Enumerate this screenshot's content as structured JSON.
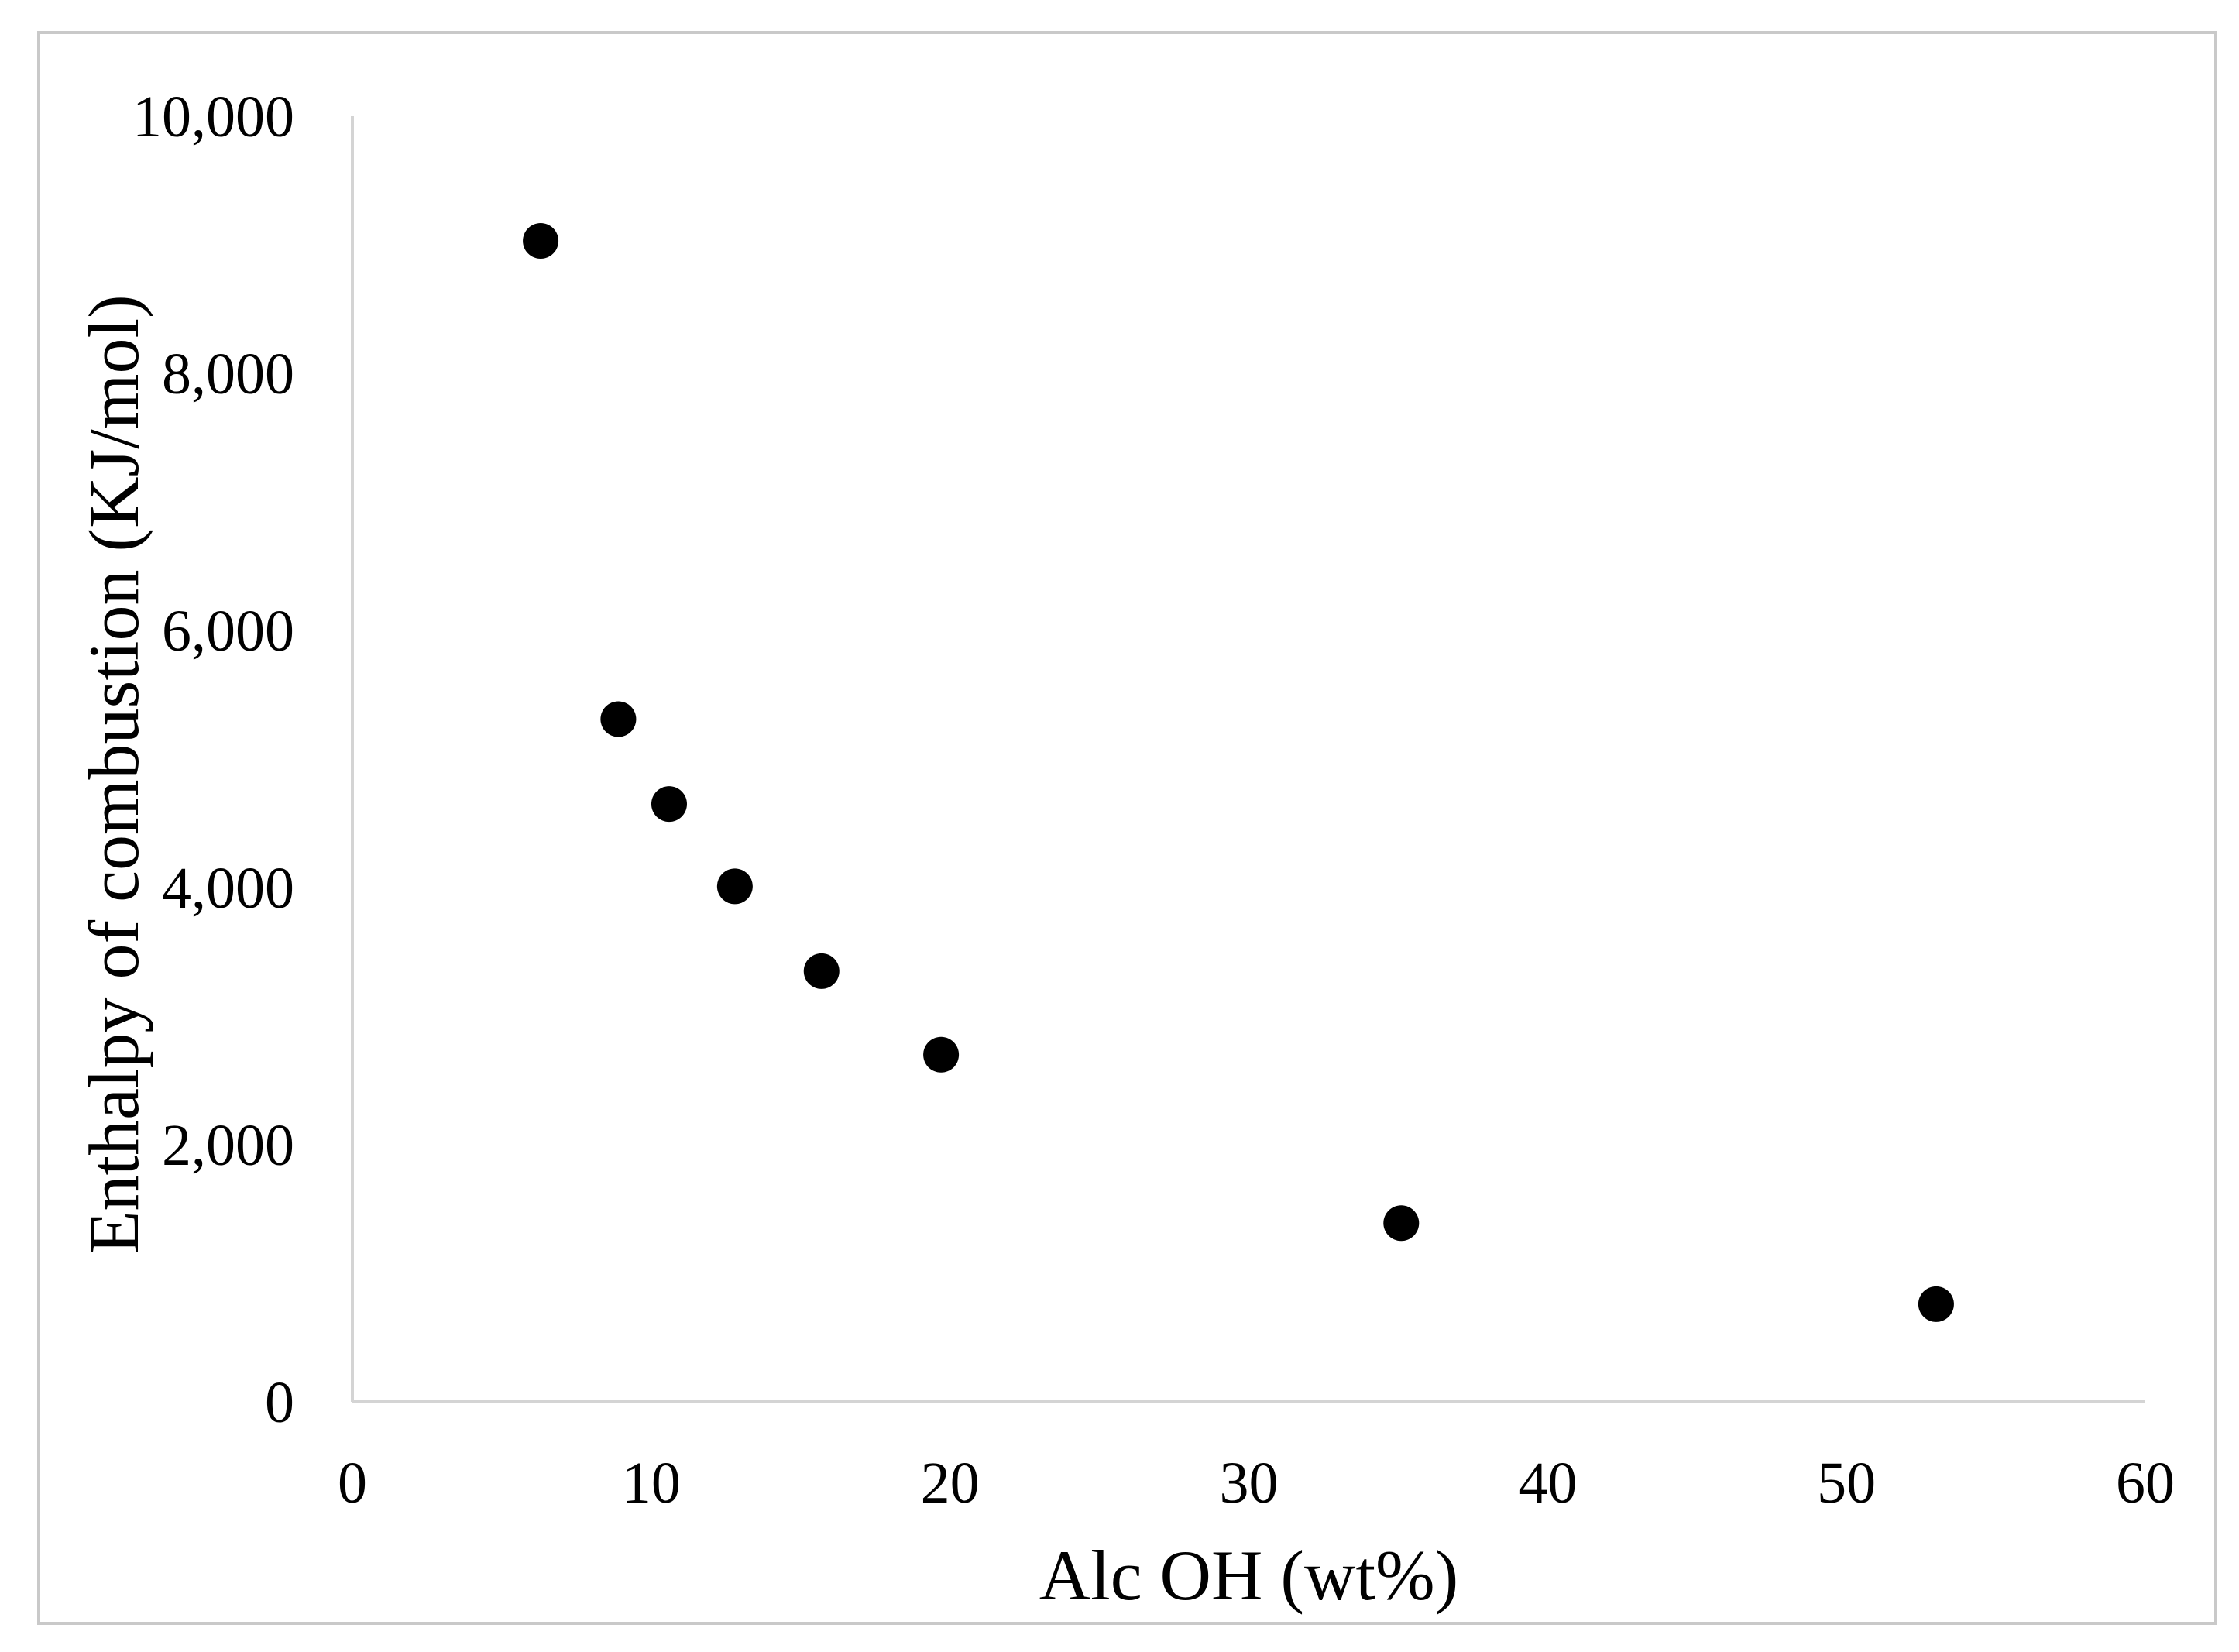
{
  "chart_data": {
    "type": "scatter",
    "title": "",
    "xlabel": "Alc OH (wt%)",
    "ylabel": "Enthalpy of combustion (KJ/mol)",
    "xlim": [
      0,
      60
    ],
    "ylim": [
      0,
      10000
    ],
    "x_ticks": [
      0,
      10,
      20,
      30,
      40,
      50,
      60
    ],
    "y_ticks": [
      0,
      2000,
      4000,
      6000,
      8000,
      10000
    ],
    "x_tick_labels": [
      "0",
      "10",
      "20",
      "30",
      "40",
      "50",
      "60"
    ],
    "y_tick_labels": [
      "0",
      "2,000",
      "4,000",
      "6,000",
      "8,000",
      "10,000"
    ],
    "grid": false,
    "legend": "none",
    "marker_color": "#000000",
    "axis_color": "#d4d4d4",
    "points": [
      {
        "x": 6.3,
        "y": 9030
      },
      {
        "x": 8.9,
        "y": 5310
      },
      {
        "x": 10.6,
        "y": 4650
      },
      {
        "x": 12.8,
        "y": 4010
      },
      {
        "x": 15.7,
        "y": 3350
      },
      {
        "x": 19.7,
        "y": 2700
      },
      {
        "x": 35.1,
        "y": 1390
      },
      {
        "x": 53.0,
        "y": 760
      }
    ]
  }
}
